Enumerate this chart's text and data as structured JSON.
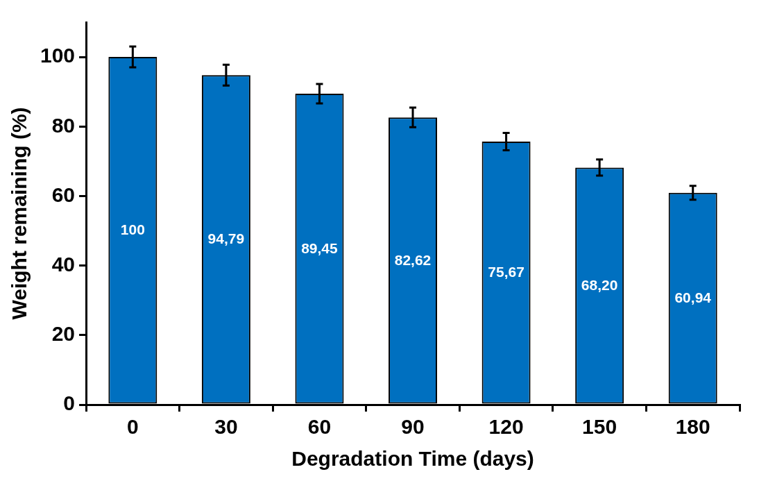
{
  "chart_data": {
    "type": "bar",
    "xlabel": "Degradation Time (days)",
    "ylabel": "Weight remaining (%)",
    "categories": [
      "0",
      "30",
      "60",
      "90",
      "120",
      "150",
      "180"
    ],
    "values": [
      100,
      94.79,
      89.45,
      82.62,
      75.67,
      68.2,
      60.94
    ],
    "value_labels": [
      "100",
      "94,79",
      "89,45",
      "82,62",
      "75,67",
      "68,20",
      "60,94"
    ],
    "errors": [
      3,
      3,
      2.8,
      2.8,
      2.5,
      2.3,
      2
    ],
    "color": "#0070c0",
    "ylim": [
      0,
      110
    ],
    "yticks": [
      0,
      20,
      40,
      60,
      80,
      100
    ],
    "grid": false,
    "legend": false
  }
}
